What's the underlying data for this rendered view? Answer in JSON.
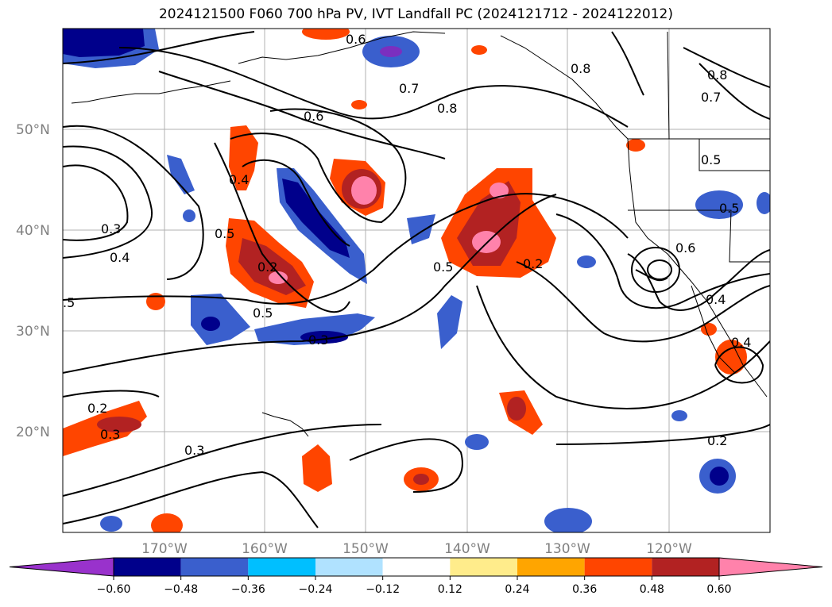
{
  "title": "2024121500 F060 700 hPa PV, IVT Landfall PC (2024121712 - 2024122012)",
  "lat_labels": [
    "50°N",
    "40°N",
    "30°N",
    "20°N"
  ],
  "lon_labels": [
    "170°W",
    "160°W",
    "150°W",
    "140°W",
    "130°W",
    "120°W"
  ],
  "contour_labels": [
    "0.6",
    "0.7",
    "0.8",
    "0.6",
    "0.8",
    "0.7",
    "0.8",
    "0.5",
    "0.4",
    "0.3",
    "0.4",
    "0.5",
    "0.2",
    "0.5",
    "0.3",
    "0.5",
    "0.2",
    "0.6",
    "0.4",
    "0.2",
    "0.3",
    "0.3",
    "0.2",
    "0.4",
    ".5",
    "0.5"
  ],
  "colorbar": {
    "ticks": [
      "−0.60",
      "−0.48",
      "−0.36",
      "−0.24",
      "−0.12",
      "0.12",
      "0.24",
      "0.36",
      "0.48",
      "0.60"
    ],
    "colors": [
      "#9932cc",
      "#00008b",
      "#3a5fcd",
      "#00bfff",
      "#b0e2ff",
      "#ffffff",
      "#ffec8b",
      "#ffa500",
      "#ff4500",
      "#b22222",
      "#ff82ab"
    ]
  }
}
